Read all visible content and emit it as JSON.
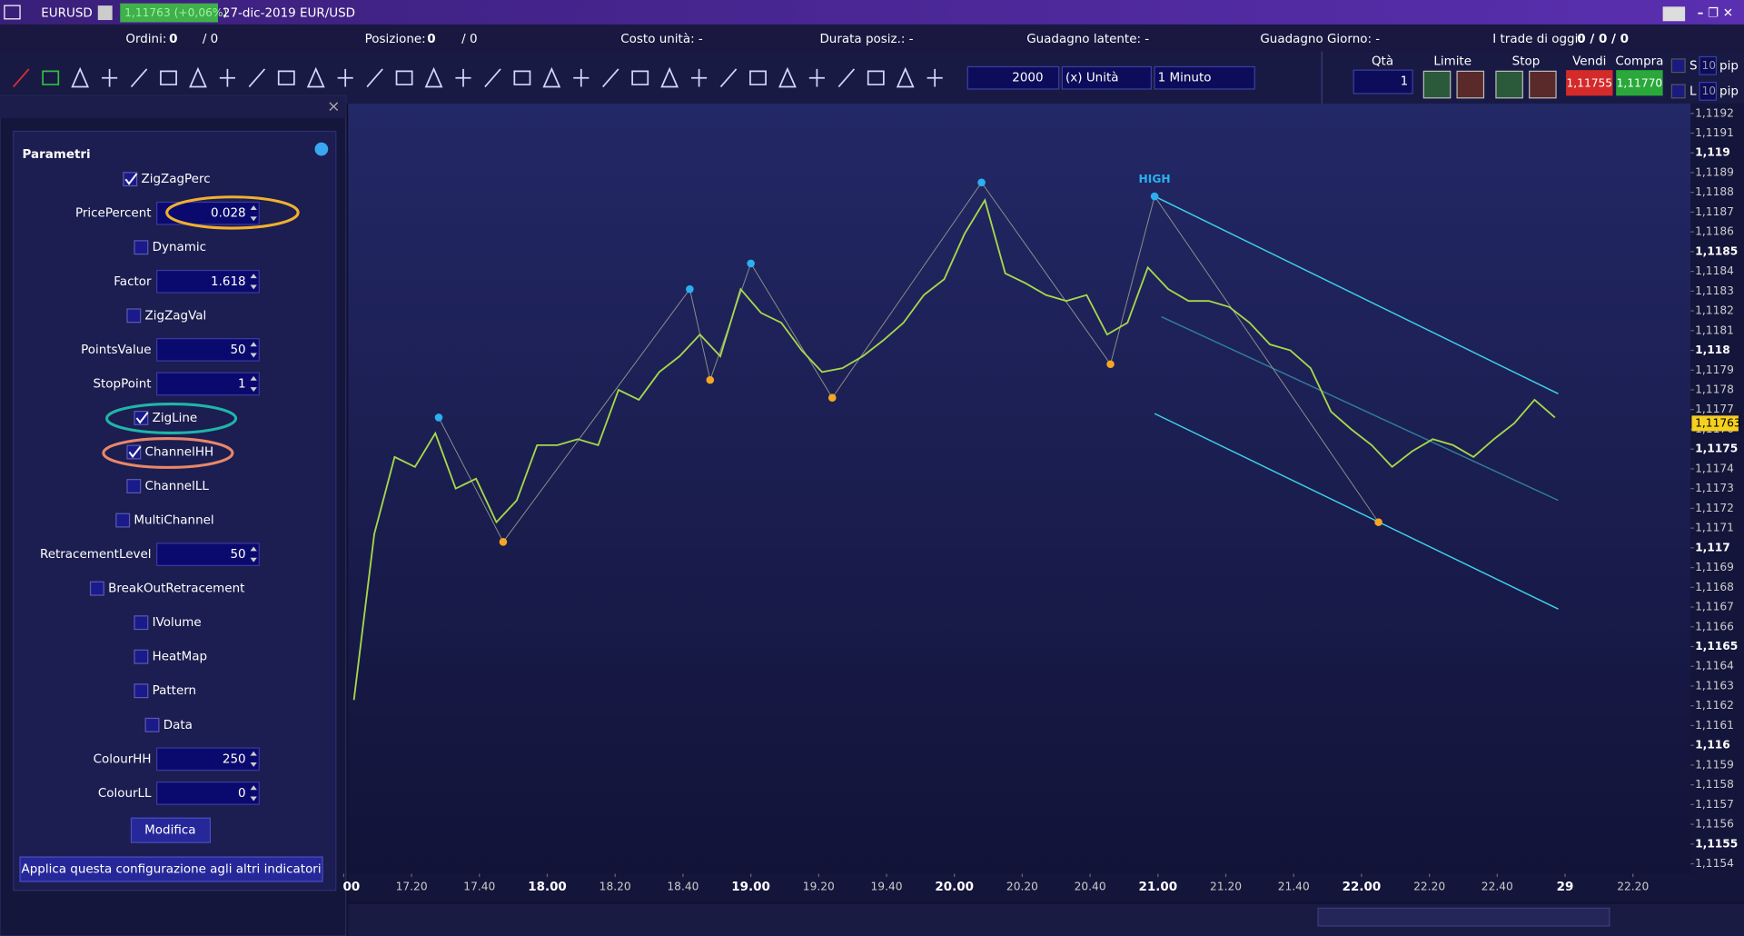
{
  "title_bar": {
    "symbol": "EURUSD",
    "quote": "1,11763 (+0,06%)",
    "date": "27-dic-2019 EUR/USD"
  },
  "status_bar": {
    "orders_label": "Ordini:",
    "orders": "0",
    "orders_total": "/ 0",
    "position_label": "Posizione:",
    "position": "0",
    "position_total": "/ 0",
    "unit_cost": "Costo unità: -",
    "duration": "Durata posiz.: -",
    "latent_gain": "Guadagno latente: -",
    "day_gain": "Guadagno Giorno: -",
    "trades_label": "I trade di oggi:",
    "trades": "0 / 0 / 0"
  },
  "toolbar": {
    "amount": "2000",
    "unit": "(x) Unità",
    "timeframe": "1 Minuto",
    "qty_label": "Qtà",
    "qty": "1",
    "limit": "Limite",
    "stop": "Stop",
    "sell_label": "Vendi",
    "sell": "1,11755",
    "buy_label": "Compra",
    "buy": "1,11770",
    "s": "S",
    "s_pips": "10",
    "s_unit": "pip",
    "l": "L",
    "l_pips": "10",
    "l_unit": "pip"
  },
  "panel": {
    "title": "Parametri",
    "params": [
      {
        "label": "ZigZagPerc",
        "checked": true
      },
      {
        "label": "PricePercent",
        "value": 0.028
      },
      {
        "label": "Dynamic",
        "checked": false
      },
      {
        "label": "Factor",
        "value": 1.618
      },
      {
        "label": "ZigZagVal",
        "checked": false
      },
      {
        "label": "PointsValue",
        "value": 50
      },
      {
        "label": "StopPoint",
        "value": 1
      },
      {
        "label": "ZigLine",
        "checked": true
      },
      {
        "label": "ChannelHH",
        "checked": true
      },
      {
        "label": "ChannelLL",
        "checked": false
      },
      {
        "label": "MultiChannel",
        "checked": false
      },
      {
        "label": "RetracementLevel",
        "value": 50
      },
      {
        "label": "BreakOutRetracement",
        "checked": false
      },
      {
        "label": "IVolume",
        "checked": false
      },
      {
        "label": "HeatMap",
        "checked": false
      },
      {
        "label": "Pattern",
        "checked": false
      },
      {
        "label": "Data",
        "checked": false
      },
      {
        "label": "ColourHH",
        "value": 250
      },
      {
        "label": "ColourLL",
        "value": 0
      }
    ],
    "modify": "Modifica",
    "apply": "Applica questa configurazione agli altri indicatori"
  },
  "chart_data": {
    "type": "line",
    "annotation": "HIGH",
    "x": [
      3,
      9,
      15,
      21,
      27,
      33,
      39,
      45,
      51,
      57,
      63,
      69,
      75,
      81,
      87,
      93,
      99,
      105,
      111,
      117,
      123,
      129,
      135,
      141,
      147,
      153,
      159,
      165,
      171,
      177,
      183,
      189,
      195,
      201,
      207,
      213,
      219,
      225,
      231,
      237,
      243,
      249,
      255,
      261,
      267,
      273,
      279,
      285,
      291,
      297,
      303,
      309,
      315,
      321,
      327,
      333,
      339,
      345,
      351,
      357
    ],
    "values": [
      1.11623,
      1.11707,
      1.11746,
      1.11741,
      1.11758,
      1.1173,
      1.11735,
      1.11713,
      1.11724,
      1.11752,
      1.11752,
      1.11755,
      1.11752,
      1.1178,
      1.11775,
      1.11789,
      1.11797,
      1.11808,
      1.11797,
      1.11831,
      1.11819,
      1.11814,
      1.118,
      1.11789,
      1.11791,
      1.11797,
      1.11805,
      1.11814,
      1.11828,
      1.11836,
      1.11859,
      1.11876,
      1.11839,
      1.11834,
      1.11828,
      1.11825,
      1.11828,
      1.11808,
      1.11814,
      1.11842,
      1.11831,
      1.11825,
      1.11825,
      1.11822,
      1.11814,
      1.11803,
      1.118,
      1.11791,
      1.11769,
      1.1176,
      1.11752,
      1.11741,
      1.11749,
      1.11755,
      1.11752,
      1.11746,
      1.11755,
      1.11763,
      1.11775,
      1.11766
    ],
    "color": "#a6d84a",
    "zigzag": {
      "x": [
        28,
        47,
        102,
        108,
        120,
        144,
        188,
        226,
        239,
        305
      ],
      "values": [
        1.11766,
        1.11703,
        1.11831,
        1.11785,
        1.11844,
        1.11776,
        1.11885,
        1.11793,
        1.11878,
        1.11713
      ],
      "color": "#8a8f8a",
      "high_color": "#2ab0f0",
      "low_color": "#f5a623"
    },
    "channels": [
      {
        "x": [
          239,
          358
        ],
        "values": [
          1.11878,
          1.11778
        ],
        "color": "#3fd0e8"
      },
      {
        "x": [
          239,
          358
        ],
        "values": [
          1.11768,
          1.11669
        ],
        "color": "#3fd0e8"
      },
      {
        "x": [
          241,
          358
        ],
        "values": [
          1.11817,
          1.11724
        ],
        "color": "#2f7d9a"
      }
    ],
    "last_price": {
      "value": 1.11763,
      "label": "1,11763"
    },
    "xlim": [
      1.3,
      397
    ],
    "ylim": [
      1.11535,
      1.11925
    ],
    "xticks": [
      {
        "value": 0,
        "label": "00"
      },
      {
        "value": 20,
        "label": "17.20"
      },
      {
        "value": 40,
        "label": "17.40"
      },
      {
        "value": 60,
        "label": "18.00"
      },
      {
        "value": 80,
        "label": "18.20"
      },
      {
        "value": 100,
        "label": "18.40"
      },
      {
        "value": 120,
        "label": "19.00"
      },
      {
        "value": 140,
        "label": "19.20"
      },
      {
        "value": 160,
        "label": "19.40"
      },
      {
        "value": 180,
        "label": "20.00"
      },
      {
        "value": 200,
        "label": "20.20"
      },
      {
        "value": 220,
        "label": "20.40"
      },
      {
        "value": 240,
        "label": "21.00"
      },
      {
        "value": 260,
        "label": "21.20"
      },
      {
        "value": 280,
        "label": "21.40"
      },
      {
        "value": 300,
        "label": "22.00"
      },
      {
        "value": 320,
        "label": "22.20"
      },
      {
        "value": 340,
        "label": "22.40"
      },
      {
        "value": 360,
        "label": "29"
      },
      {
        "value": 380,
        "label": "22.20"
      }
    ],
    "yticks": [
      {
        "value": 1.1192,
        "label": "1,1192"
      },
      {
        "value": 1.1191,
        "label": "1,1191"
      },
      {
        "value": 1.119,
        "label": "1,119"
      },
      {
        "value": 1.1189,
        "label": "1,1189"
      },
      {
        "value": 1.1188,
        "label": "1,1188"
      },
      {
        "value": 1.1187,
        "label": "1,1187"
      },
      {
        "value": 1.1186,
        "label": "1,1186"
      },
      {
        "value": 1.1185,
        "label": "1,1185"
      },
      {
        "value": 1.1184,
        "label": "1,1184"
      },
      {
        "value": 1.1183,
        "label": "1,1183"
      },
      {
        "value": 1.1182,
        "label": "1,1182"
      },
      {
        "value": 1.1181,
        "label": "1,1181"
      },
      {
        "value": 1.118,
        "label": "1,118"
      },
      {
        "value": 1.1179,
        "label": "1,1179"
      },
      {
        "value": 1.1178,
        "label": "1,1178"
      },
      {
        "value": 1.1177,
        "label": "1,1177"
      },
      {
        "value": 1.1176,
        "label": "1,1176"
      },
      {
        "value": 1.1175,
        "label": "1,1175"
      },
      {
        "value": 1.1174,
        "label": "1,1174"
      },
      {
        "value": 1.1173,
        "label": "1,1173"
      },
      {
        "value": 1.1172,
        "label": "1,1172"
      },
      {
        "value": 1.1171,
        "label": "1,1171"
      },
      {
        "value": 1.117,
        "label": "1,117"
      },
      {
        "value": 1.1169,
        "label": "1,1169"
      },
      {
        "value": 1.1168,
        "label": "1,1168"
      },
      {
        "value": 1.1167,
        "label": "1,1167"
      },
      {
        "value": 1.1166,
        "label": "1,1166"
      },
      {
        "value": 1.1165,
        "label": "1,1165"
      },
      {
        "value": 1.1164,
        "label": "1,1164"
      },
      {
        "value": 1.1163,
        "label": "1,1163"
      },
      {
        "value": 1.1162,
        "label": "1,1162"
      },
      {
        "value": 1.1161,
        "label": "1,1161"
      },
      {
        "value": 1.116,
        "label": "1,116"
      },
      {
        "value": 1.1159,
        "label": "1,1159"
      },
      {
        "value": 1.1158,
        "label": "1,1158"
      },
      {
        "value": 1.1157,
        "label": "1,1157"
      },
      {
        "value": 1.1156,
        "label": "1,1156"
      },
      {
        "value": 1.1155,
        "label": "1,1155"
      },
      {
        "value": 1.1154,
        "label": "1,1154"
      }
    ]
  }
}
